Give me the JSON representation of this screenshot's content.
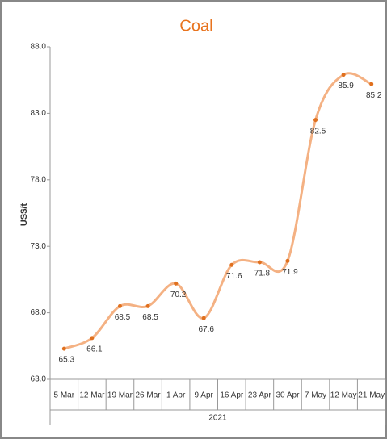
{
  "chart_data": {
    "type": "line",
    "title": "Coal",
    "y_label": "US$/t",
    "categories": [
      "5 Mar",
      "12 Mar",
      "19 Mar",
      "26 Mar",
      "1 Apr",
      "9 Apr",
      "16 Apr",
      "23 Apr",
      "30 Apr",
      "7 May",
      "12 May",
      "21 May"
    ],
    "category_group": "2021",
    "series": [
      {
        "name": "Coal",
        "color": "#f4b183",
        "marker_color": "#e0701e",
        "values": [
          65.3,
          66.1,
          68.5,
          68.5,
          70.2,
          67.6,
          71.6,
          71.8,
          71.9,
          82.5,
          85.9,
          85.2
        ]
      }
    ],
    "ylim": [
      63,
      88
    ],
    "yticks": [
      {
        "value": 63,
        "label": "63.0"
      },
      {
        "value": 68,
        "label": "68.0"
      },
      {
        "value": 73,
        "label": "73.0"
      },
      {
        "value": 78,
        "label": "78.0"
      },
      {
        "value": 83,
        "label": "83.0"
      },
      {
        "value": 88,
        "label": "88.0"
      }
    ],
    "smooth": true
  }
}
